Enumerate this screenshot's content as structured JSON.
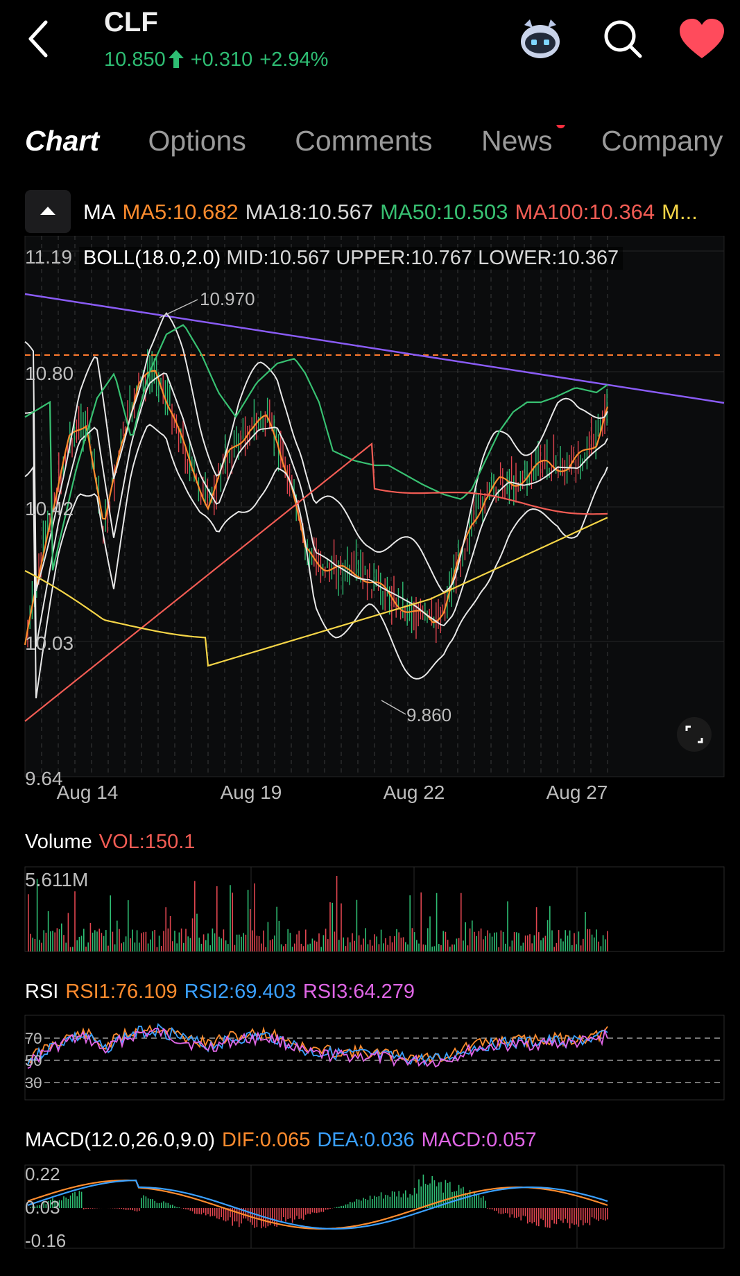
{
  "header": {
    "ticker": "CLF",
    "price": "10.850",
    "change": "+0.310",
    "change_pct": "+2.94%",
    "up_color": "#2ebd73",
    "icons": [
      "back-arrow-icon",
      "robot-assistant-icon",
      "search-icon",
      "heart-icon"
    ]
  },
  "tabs": [
    {
      "label": "Chart",
      "active": true
    },
    {
      "label": "Options"
    },
    {
      "label": "Comments"
    },
    {
      "label": "News",
      "badge": true
    },
    {
      "label": "Company"
    }
  ],
  "ma_row": {
    "label": "MA",
    "ma5": "MA5:10.682",
    "ma18": "MA18:10.567",
    "ma50": "MA50:10.503",
    "ma100": "MA100:10.364",
    "more": "M..."
  },
  "boll": {
    "title": "BOLL(18.0,2.0)",
    "mid": "MID:10.567",
    "upper": "UPPER:10.767",
    "lower": "LOWER:10.367"
  },
  "price_chart": {
    "y_ticks": [
      "11.19",
      "10.80",
      "10.42",
      "10.03",
      "9.64"
    ],
    "x_ticks": [
      "Aug 14",
      "Aug 19",
      "Aug 22",
      "Aug 27"
    ],
    "high_marker": "10.970",
    "low_marker": "9.860",
    "current_price_line": 10.85,
    "colors": {
      "ma5": "#ff8c2e",
      "ma18": "#e8e8e8",
      "ma50": "#38c172",
      "ma100": "#f25c54",
      "ma200": "#f5d547",
      "trend": "#8a5cf6"
    }
  },
  "volume": {
    "label": "Volume",
    "vol": "VOL:150.1",
    "max_tick": "5.611M"
  },
  "rsi": {
    "label": "RSI",
    "rsi1": "RSI1:76.109",
    "rsi2": "RSI2:69.403",
    "rsi3": "RSI3:64.279",
    "levels": [
      "70",
      "50",
      "30"
    ],
    "colors": {
      "rsi1": "#ff8c2e",
      "rsi2": "#3aa0ff",
      "rsi3": "#e066e6"
    }
  },
  "macd": {
    "label": "MACD(12.0,26.0,9.0)",
    "dif": "DIF:0.065",
    "dea": "DEA:0.036",
    "macd": "MACD:0.057",
    "y_ticks": [
      "0.22",
      "0.03",
      "-0.16"
    ],
    "colors": {
      "dif": "#ff8c2e",
      "dea": "#3aa0ff",
      "macd": "#e066e6"
    }
  }
}
